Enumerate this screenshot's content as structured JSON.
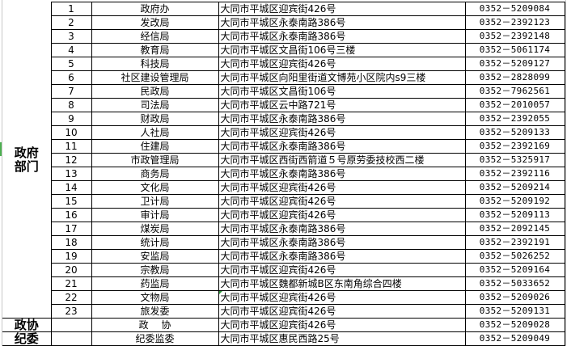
{
  "groups": {
    "government": "政府\n部门",
    "cppcc": "政协",
    "discipline": "纪委"
  },
  "rows": [
    {
      "num": "1",
      "name": "政府办",
      "addr": "大同市平城区迎宾街426号",
      "phone": "0352－5209084"
    },
    {
      "num": "2",
      "name": "发改局",
      "addr": "大同市平城区永泰南路386号",
      "phone": "0352－2392123"
    },
    {
      "num": "3",
      "name": "经信局",
      "addr": "大同市平城区永泰南路386号",
      "phone": "0352－2392148"
    },
    {
      "num": "4",
      "name": "教育局",
      "addr": "大同市平城区文昌街106号三楼",
      "phone": "0352－5061174"
    },
    {
      "num": "5",
      "name": "科技局",
      "addr": "大同市平城区迎宾街426号",
      "phone": "0352－5209127"
    },
    {
      "num": "6",
      "name": "社区建设管理局",
      "addr": "大同市平城区向阳里街道文博苑小区院内s9三楼",
      "phone": "0352－2828099"
    },
    {
      "num": "7",
      "name": "民政局",
      "addr": "大同市平城区文昌街106号",
      "phone": "0352－7962561"
    },
    {
      "num": "8",
      "name": "司法局",
      "addr": "大同市平城区云中路721号",
      "phone": "0352－2010057"
    },
    {
      "num": "9",
      "name": "财政局",
      "addr": "大同市平城区永泰南路386号",
      "phone": "0352－2392055"
    },
    {
      "num": "10",
      "name": "人社局",
      "addr": "大同市平城区迎宾街426号",
      "phone": "0352－5209133"
    },
    {
      "num": "11",
      "name": "住建局",
      "addr": "大同市平城区永泰南路386号",
      "phone": "0352－2392169"
    },
    {
      "num": "12",
      "name": "市政管理局",
      "addr": "大同市平城区西街西箭道５号原劳委技校西二楼",
      "phone": "0352－5325917"
    },
    {
      "num": "13",
      "name": "商务局",
      "addr": "大同市平城区永泰南路386号",
      "phone": "0352－2392116"
    },
    {
      "num": "14",
      "name": "文化局",
      "addr": "大同市平城区迎宾街426号",
      "phone": "0352－5209214"
    },
    {
      "num": "15",
      "name": "卫计局",
      "addr": "大同市平城区迎宾街426号",
      "phone": "0352－5209192"
    },
    {
      "num": "16",
      "name": "审计局",
      "addr": "大同市平城区迎宾街426号",
      "phone": "0352－5209113"
    },
    {
      "num": "17",
      "name": "煤炭局",
      "addr": "大同市平城区永泰南路386号",
      "phone": "0352－2092145"
    },
    {
      "num": "18",
      "name": "统计局",
      "addr": "大同市平城区永泰南路386号",
      "phone": "0352－2392191"
    },
    {
      "num": "19",
      "name": "安监局",
      "addr": "大同市平城区永泰南路386号",
      "phone": "0352－5026252"
    },
    {
      "num": "20",
      "name": "宗教局",
      "addr": "大同市平城区迎宾街426号",
      "phone": "0352－5209164"
    },
    {
      "num": "21",
      "name": "药监局",
      "addr": "大同市平城区魏都新城B区东南角综合四楼",
      "phone": "0352－5033652"
    },
    {
      "num": "22",
      "name": "文物局",
      "addr": "大同市平城区迎宾街426号",
      "phone": "0352－5209026"
    },
    {
      "num": "23",
      "name": "旅发委",
      "addr": "大同市平城区迎宾街426号",
      "phone": "0352－5209131"
    }
  ],
  "cppcc_row": {
    "num": "",
    "name": "政　 协",
    "addr": "大同市平城区迎宾街426号",
    "phone": "0352－5209028"
  },
  "discipline_row": {
    "num": "",
    "name": "纪委监委",
    "addr": "大同市平城区惠民西路25号",
    "phone": "0352－5209049"
  }
}
